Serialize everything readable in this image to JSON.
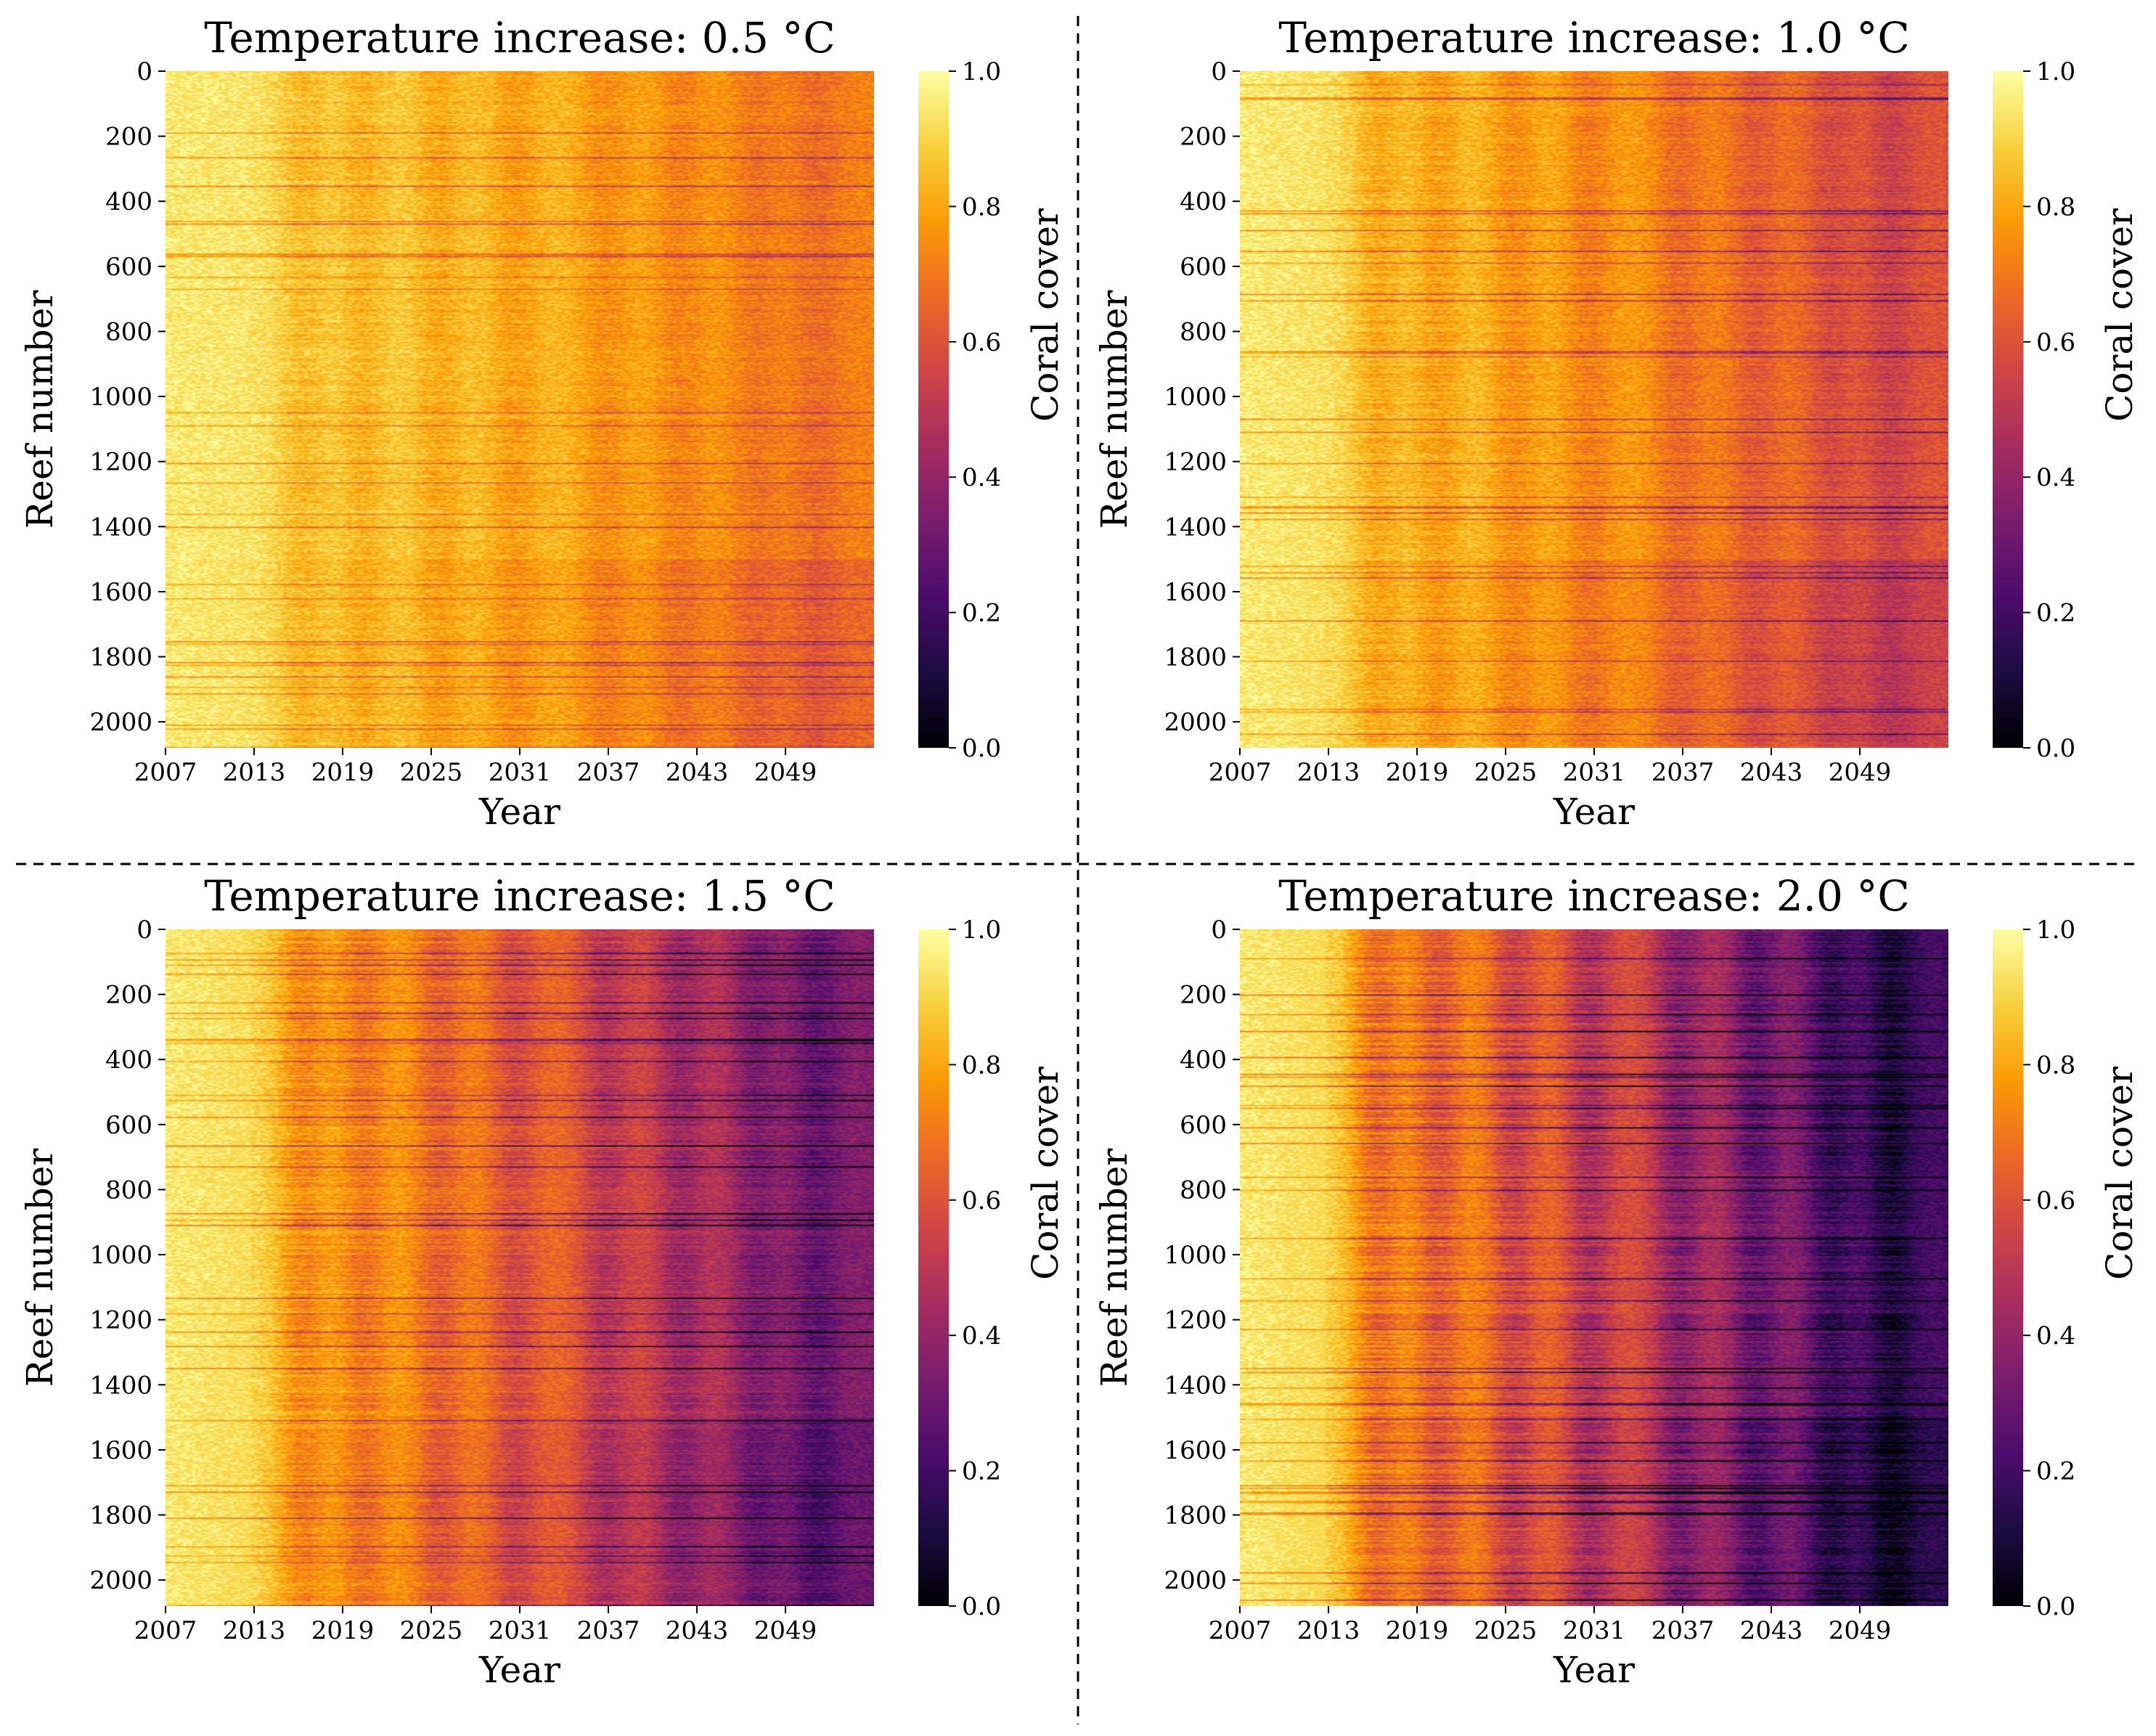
{
  "figure": {
    "colormap": "inferno",
    "colormap_stops": [
      "#000004",
      "#1b0c41",
      "#4a0c6b",
      "#781c6d",
      "#a52c60",
      "#cf4446",
      "#ed6925",
      "#fb9b06",
      "#f7d13d",
      "#fcffa4"
    ]
  },
  "chart_data": [
    {
      "type": "heatmap",
      "title": "Temperature increase: 0.5 °C",
      "xlabel": "Year",
      "ylabel": "Reef number",
      "colorbar_label": "Coral cover",
      "x_ticks": [
        "2007",
        "2013",
        "2019",
        "2025",
        "2031",
        "2037",
        "2043",
        "2049"
      ],
      "y_ticks": [
        "0",
        "200",
        "400",
        "600",
        "800",
        "1000",
        "1200",
        "1400",
        "1600",
        "1800",
        "2000"
      ],
      "colorbar_ticks": [
        "0.0",
        "0.2",
        "0.4",
        "0.6",
        "0.8",
        "1.0"
      ],
      "x_range": [
        2007,
        2054
      ],
      "y_range": [
        0,
        2080
      ],
      "value_range": [
        0.0,
        1.0
      ],
      "decline_rate": 0.09,
      "mean_cover_start": 0.95,
      "mean_cover_end": 0.72
    },
    {
      "type": "heatmap",
      "title": "Temperature increase: 1.0 °C",
      "xlabel": "Year",
      "ylabel": "Reef number",
      "colorbar_label": "Coral cover",
      "x_ticks": [
        "2007",
        "2013",
        "2019",
        "2025",
        "2031",
        "2037",
        "2043",
        "2049"
      ],
      "y_ticks": [
        "0",
        "200",
        "400",
        "600",
        "800",
        "1000",
        "1200",
        "1400",
        "1600",
        "1800",
        "2000"
      ],
      "colorbar_ticks": [
        "0.0",
        "0.2",
        "0.4",
        "0.6",
        "0.8",
        "1.0"
      ],
      "x_range": [
        2007,
        2054
      ],
      "y_range": [
        0,
        2080
      ],
      "value_range": [
        0.0,
        1.0
      ],
      "decline_rate": 0.2,
      "mean_cover_start": 0.95,
      "mean_cover_end": 0.6
    },
    {
      "type": "heatmap",
      "title": "Temperature increase: 1.5 °C",
      "xlabel": "Year",
      "ylabel": "Reef number",
      "colorbar_label": "Coral cover",
      "x_ticks": [
        "2007",
        "2013",
        "2019",
        "2025",
        "2031",
        "2037",
        "2043",
        "2049"
      ],
      "y_ticks": [
        "0",
        "200",
        "400",
        "600",
        "800",
        "1000",
        "1200",
        "1400",
        "1600",
        "1800",
        "2000"
      ],
      "colorbar_ticks": [
        "0.0",
        "0.2",
        "0.4",
        "0.6",
        "0.8",
        "1.0"
      ],
      "x_range": [
        2007,
        2054
      ],
      "y_range": [
        0,
        2080
      ],
      "value_range": [
        0.0,
        1.0
      ],
      "decline_rate": 0.45,
      "mean_cover_start": 0.95,
      "mean_cover_end": 0.35
    },
    {
      "type": "heatmap",
      "title": "Temperature increase: 2.0 °C",
      "xlabel": "Year",
      "ylabel": "Reef number",
      "colorbar_label": "Coral cover",
      "x_ticks": [
        "2007",
        "2013",
        "2019",
        "2025",
        "2031",
        "2037",
        "2043",
        "2049"
      ],
      "y_ticks": [
        "0",
        "200",
        "400",
        "600",
        "800",
        "1000",
        "1200",
        "1400",
        "1600",
        "1800",
        "2000"
      ],
      "colorbar_ticks": [
        "0.0",
        "0.2",
        "0.4",
        "0.6",
        "0.8",
        "1.0"
      ],
      "x_range": [
        2007,
        2054
      ],
      "y_range": [
        0,
        2080
      ],
      "value_range": [
        0.0,
        1.0
      ],
      "decline_rate": 0.68,
      "mean_cover_start": 0.95,
      "mean_cover_end": 0.2
    }
  ]
}
